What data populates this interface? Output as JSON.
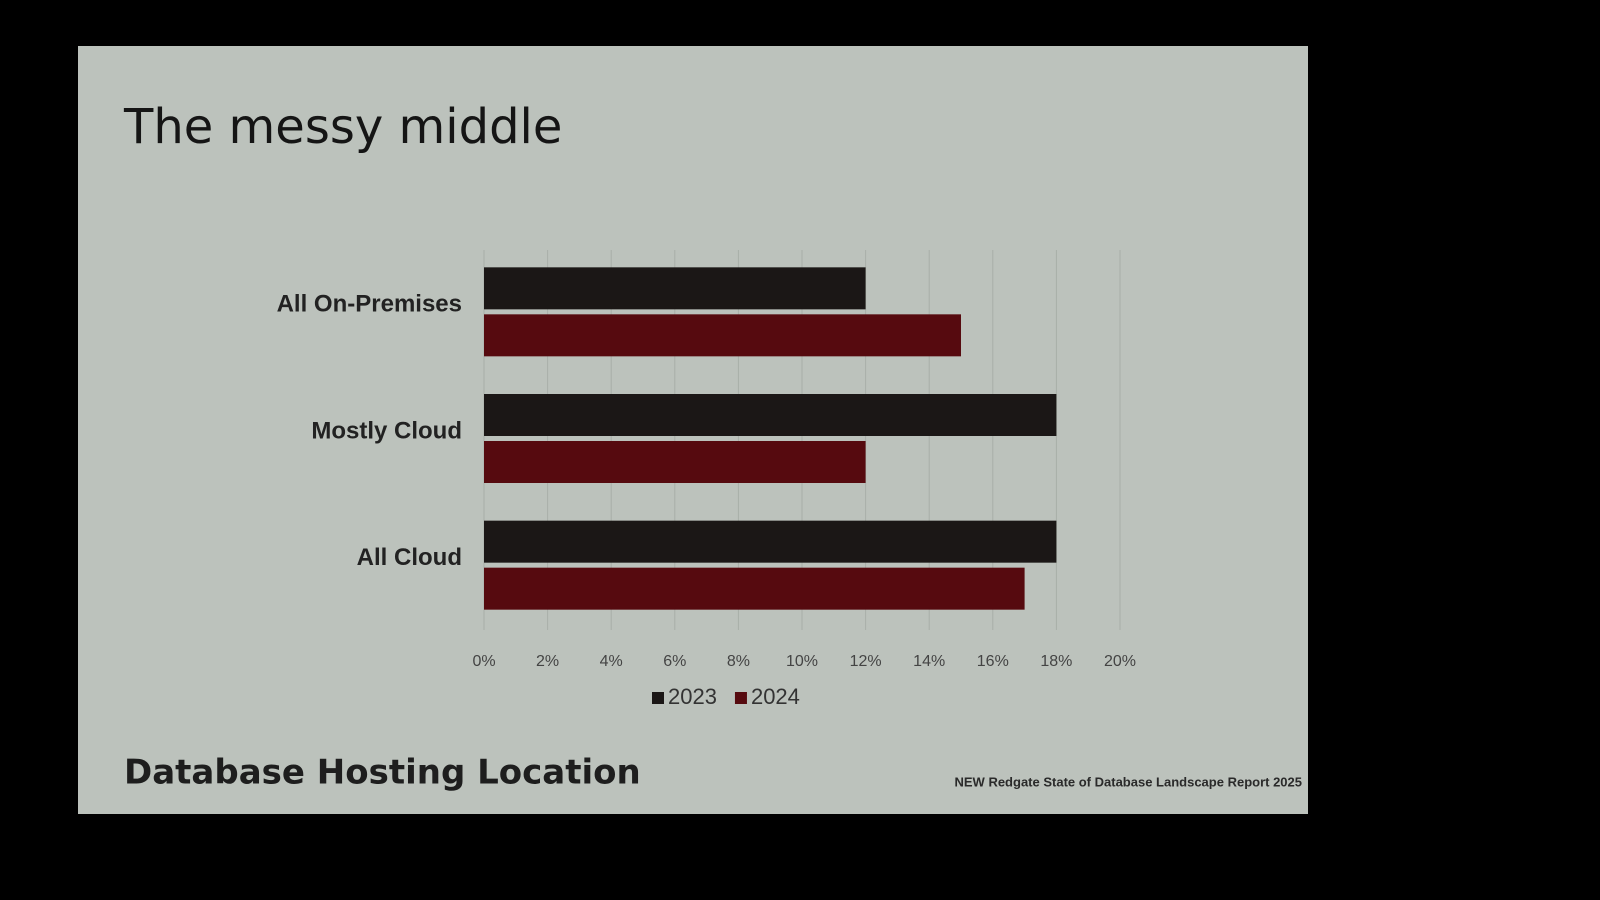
{
  "chart_data": {
    "type": "hbar",
    "title": "The messy middle",
    "subtitle": "Database Hosting Location",
    "source": "NEW Redgate State of Database Landscape Report 2025",
    "categories": [
      "All On-Premises",
      "Mostly Cloud",
      "All Cloud"
    ],
    "series": [
      {
        "name": "2023",
        "color": "#1b1716",
        "values": [
          12,
          18,
          18
        ]
      },
      {
        "name": "2024",
        "color": "#560a0f",
        "values": [
          15,
          12,
          17
        ]
      }
    ],
    "xlim": [
      0,
      20
    ],
    "xticks": [
      {
        "value": 0,
        "label": "0%"
      },
      {
        "value": 2,
        "label": "2%"
      },
      {
        "value": 4,
        "label": "4%"
      },
      {
        "value": 6,
        "label": "6%"
      },
      {
        "value": 8,
        "label": "8%"
      },
      {
        "value": 10,
        "label": "10%"
      },
      {
        "value": 12,
        "label": "12%"
      },
      {
        "value": 14,
        "label": "14%"
      },
      {
        "value": 16,
        "label": "16%"
      },
      {
        "value": 18,
        "label": "18%"
      },
      {
        "value": 20,
        "label": "20%"
      }
    ],
    "grid": true,
    "legend": "bottom"
  }
}
